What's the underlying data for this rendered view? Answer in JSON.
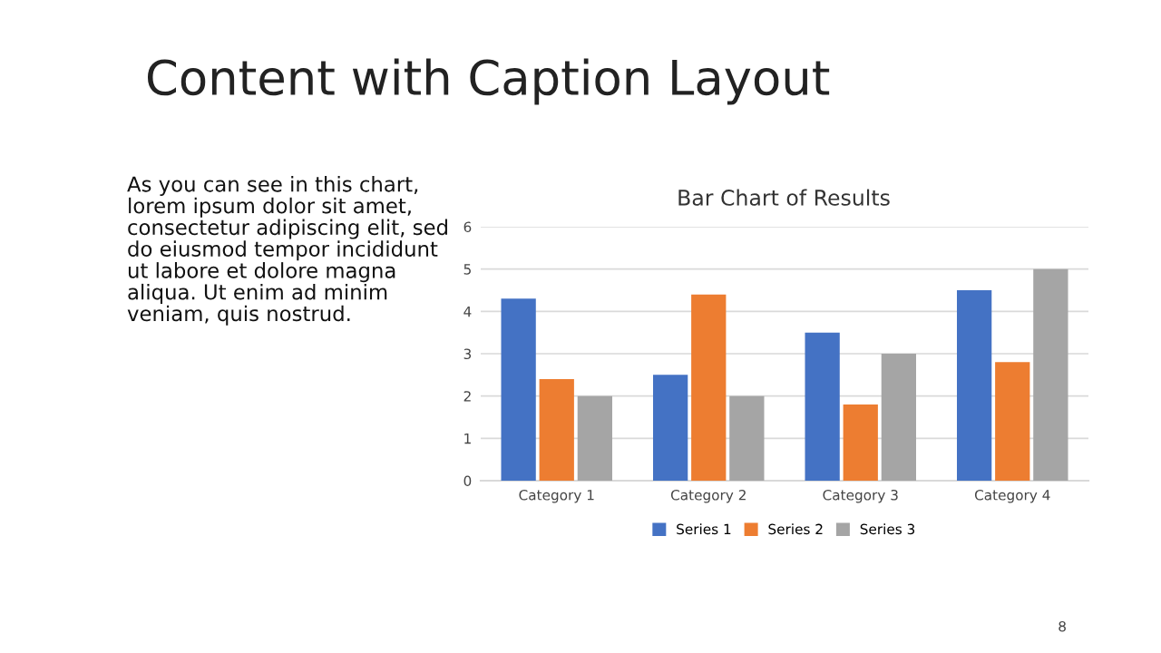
{
  "chart_data": {
    "type": "bar",
    "title": "Content with Caption Layout",
    "subtitle": "Bar Chart of Results",
    "annotations": [
      "As you can see in this chart,\nlorem ipsum dolor sit amet,\nconsectetur adipiscing elit, sed\ndo eiusmod tempor incididunt\nut labore et dolore magna\naliqua. Ut enim ad minim\nveniam, quis nostrud.",
      "8"
    ],
    "categories": [
      "Category 1",
      "Category 2",
      "Category 3",
      "Category 4"
    ],
    "series": [
      {
        "name": "Series 1",
        "color": "#4472c4",
        "values": [
          4.3,
          2.5,
          3.5,
          4.5
        ]
      },
      {
        "name": "Series 2",
        "color": "#ed7d31",
        "values": [
          2.4,
          4.4,
          1.8,
          2.8
        ]
      },
      {
        "name": "Series 3",
        "color": "#a5a5a5",
        "values": [
          2,
          2,
          3,
          5
        ]
      }
    ],
    "ylim": [
      0,
      6
    ],
    "yticks": [
      0,
      1,
      2,
      3,
      4,
      5,
      6
    ],
    "grid": "y",
    "legend": "bottom"
  }
}
